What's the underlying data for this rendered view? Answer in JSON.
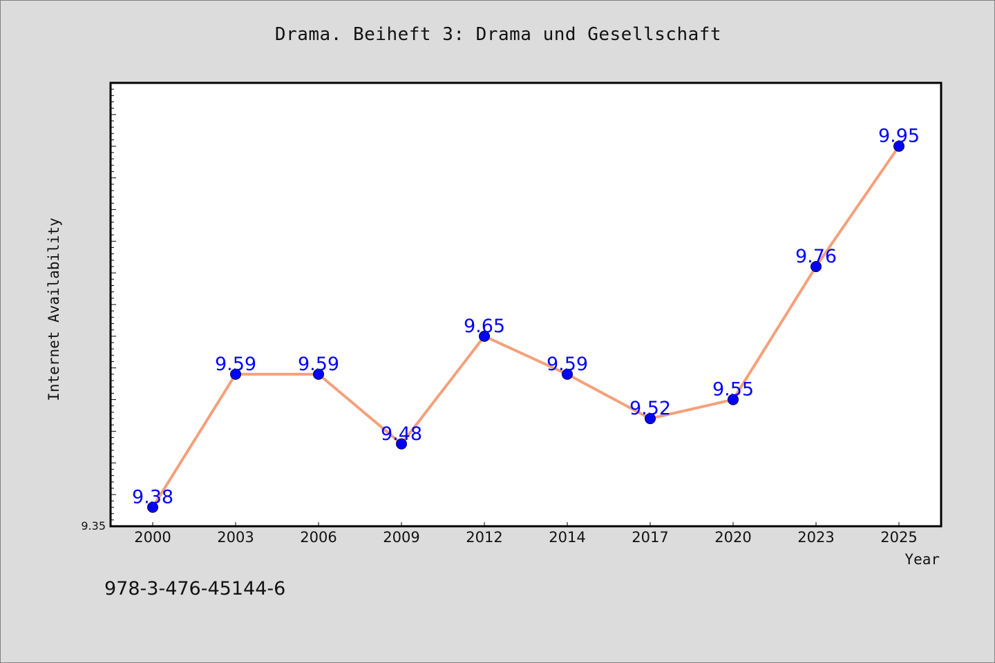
{
  "chart_data": {
    "type": "line",
    "title": "Drama. Beiheft 3: Drama und Gesellschaft",
    "xlabel": "Year",
    "ylabel": "Internet Availability",
    "categories": [
      "2000",
      "2003",
      "2006",
      "2009",
      "2012",
      "2014",
      "2017",
      "2020",
      "2023",
      "2025"
    ],
    "series": [
      {
        "values": [
          9.38,
          9.59,
          9.59,
          9.48,
          9.65,
          9.59,
          9.52,
          9.55,
          9.76,
          9.95
        ],
        "labels": [
          "9.38",
          "9.59",
          "9.59",
          "9.48",
          "9.65",
          "9.59",
          "9.52",
          "9.55",
          "9.76",
          "9.95"
        ]
      }
    ],
    "ylim": [
      9.35,
      10.05
    ],
    "ytick_labels": [
      "9.35"
    ],
    "grid": false,
    "colors": {
      "line": "#f4a07a",
      "marker": "#0000ff",
      "data_label": "#0000ff",
      "plot_bg": "#ffffff",
      "page_bg": "#dcdcdc"
    }
  },
  "footer": {
    "isbn": "978-3-476-45144-6"
  }
}
